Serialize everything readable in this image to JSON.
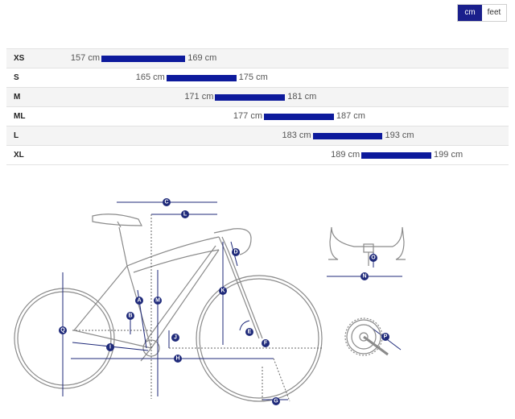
{
  "unit_toggle": {
    "cm_label": "cm",
    "feet_label": "feet",
    "selected": "cm"
  },
  "sizes": [
    {
      "label": "XS",
      "min": "157 cm",
      "max": "169 cm",
      "min_cm": 157,
      "max_cm": 169
    },
    {
      "label": "S",
      "min": "165 cm",
      "max": "175 cm",
      "min_cm": 165,
      "max_cm": 175
    },
    {
      "label": "M",
      "min": "171 cm",
      "max": "181 cm",
      "min_cm": 171,
      "max_cm": 181
    },
    {
      "label": "ML",
      "min": "177 cm",
      "max": "187 cm",
      "min_cm": 177,
      "max_cm": 187
    },
    {
      "label": "L",
      "min": "183 cm",
      "max": "193 cm",
      "min_cm": 183,
      "max_cm": 193
    },
    {
      "label": "XL",
      "min": "189 cm",
      "max": "199 cm",
      "min_cm": 189,
      "max_cm": 199
    }
  ],
  "geometry_markers": {
    "A": "A",
    "B": "B",
    "C": "C",
    "D": "D",
    "E": "E",
    "F": "F",
    "G": "G",
    "H": "H",
    "I": "I",
    "J": "J",
    "K": "K",
    "L": "L",
    "M": "M",
    "N": "N",
    "O": "O",
    "P": "P",
    "Q": "Q"
  },
  "colors": {
    "accent": "#1a1f8c",
    "bar": "#0d1a9c",
    "dimension": "#1f2a7a",
    "bike_line": "#7a7a7a",
    "row_alt": "#f4f4f4"
  }
}
